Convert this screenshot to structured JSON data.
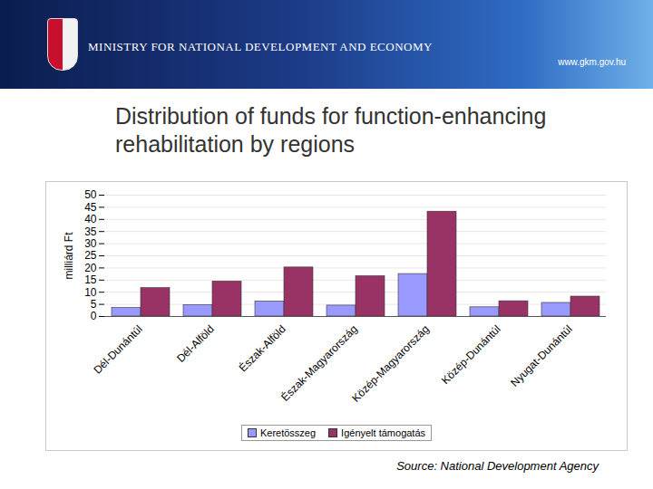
{
  "header": {
    "ministry": "MINISTRY FOR NATIONAL DEVELOPMENT AND ECONOMY",
    "url": "www.gkm.gov.hu"
  },
  "chart_data": {
    "type": "bar",
    "title": "Distribution of funds for function-enhancing rehabilitation by regions",
    "y_label": "milliárd Ft",
    "source": "Source: National Development Agency",
    "categories": [
      "Dél-Dunántúl",
      "Dél-Alföld",
      "Észak-Alföld",
      "Észak-Magyarország",
      "Közép-Magyarország",
      "Közép-Dunántúl",
      "Nyugat-Dunántúl"
    ],
    "series": [
      {
        "name": "Keretösszeg",
        "color": "#9999ff",
        "values": [
          3.5,
          4.7,
          6.2,
          4.5,
          17.5,
          3.8,
          5.6
        ]
      },
      {
        "name": "Igényelt támogatás",
        "color": "#993366",
        "values": [
          11.7,
          14.4,
          20.2,
          16.6,
          43.2,
          6.3,
          8.2
        ]
      }
    ],
    "ylim": [
      0,
      50
    ],
    "yticks": [
      0,
      5,
      10,
      15,
      20,
      25,
      30,
      35,
      40,
      45,
      50
    ],
    "grid": true,
    "legend": "bottom"
  }
}
